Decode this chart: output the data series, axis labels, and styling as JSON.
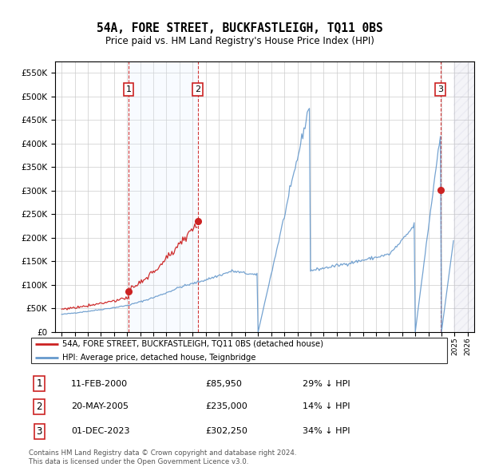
{
  "title": "54A, FORE STREET, BUCKFASTLEIGH, TQ11 0BS",
  "subtitle": "Price paid vs. HM Land Registry's House Price Index (HPI)",
  "legend_line1": "54A, FORE STREET, BUCKFASTLEIGH, TQ11 0BS (detached house)",
  "legend_line2": "HPI: Average price, detached house, Teignbridge",
  "transactions": [
    {
      "num": 1,
      "date_label": "11-FEB-2000",
      "date_x": 2000.12,
      "price": 85950,
      "pct": "29% ↓ HPI"
    },
    {
      "num": 2,
      "date_label": "20-MAY-2005",
      "date_x": 2005.38,
      "price": 235000,
      "pct": "14% ↓ HPI"
    },
    {
      "num": 3,
      "date_label": "01-DEC-2023",
      "date_x": 2023.92,
      "price": 302250,
      "pct": "34% ↓ HPI"
    }
  ],
  "footer_line1": "Contains HM Land Registry data © Crown copyright and database right 2024.",
  "footer_line2": "This data is licensed under the Open Government Licence v3.0.",
  "ylim": [
    0,
    575000
  ],
  "yticks": [
    0,
    50000,
    100000,
    150000,
    200000,
    250000,
    300000,
    350000,
    400000,
    450000,
    500000,
    550000
  ],
  "xlim_start": 1994.5,
  "xlim_end": 2026.5,
  "hpi_color": "#6699cc",
  "price_color": "#cc2222",
  "shade_color": "#ddeeff",
  "background_color": "#ffffff",
  "hatch_start": 2024.92
}
